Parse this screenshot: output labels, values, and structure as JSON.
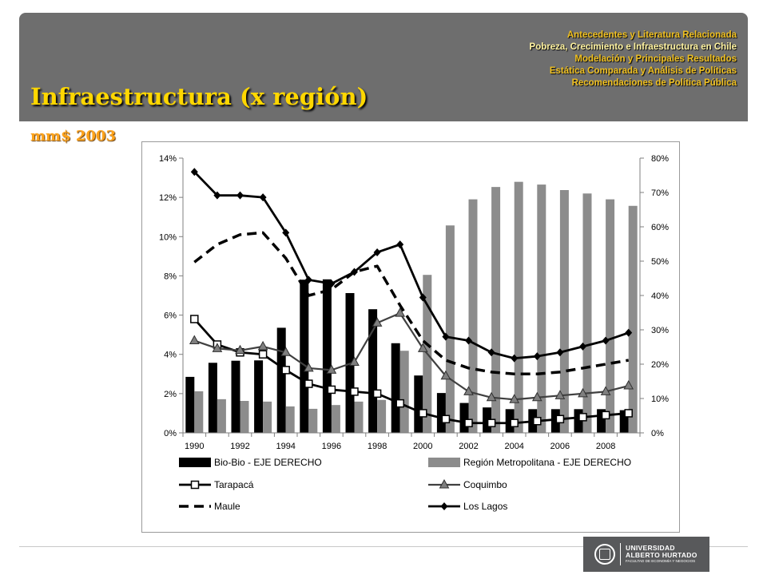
{
  "header": {
    "title": "Infraestructura (x región)",
    "nav": [
      {
        "label": "Antecedentes  y Literatura Relacionada",
        "active": false
      },
      {
        "label": "Pobreza, Crecimiento e Infraestructura  en Chile",
        "active": true
      },
      {
        "label": "Modelación y Principales Resultados",
        "active": false
      },
      {
        "label": "Estática Comparada y Análisis de Políticas",
        "active": false
      },
      {
        "label": "Recomendaciones de Política Pública",
        "active": false
      }
    ]
  },
  "subtitle": "mm$ 2003",
  "logo": {
    "name_line1": "UNIVERSIDAD",
    "name_line2": "ALBERTO HURTADO",
    "faculty": "FACULTAD DE ECONOMÍA Y NEGOCIOS"
  },
  "colors": {
    "header_bg": "#6e6e6e",
    "title": "#ffd700",
    "subtitle": "#ffa31a",
    "bar_biobio": "#000000",
    "bar_rm": "#8c8c8c",
    "coquimbo_line": "#404040",
    "coquimbo_marker": "#7f7f7f"
  },
  "chart_data": {
    "type": "bar+line",
    "years": [
      1990,
      1991,
      1992,
      1993,
      1994,
      1995,
      1996,
      1997,
      1998,
      1999,
      2000,
      2001,
      2002,
      2003,
      2004,
      2005,
      2006,
      2007,
      2008,
      2009
    ],
    "x_tick_labels": [
      "1990",
      "1992",
      "1994",
      "1996",
      "1998",
      "2000",
      "2002",
      "2004",
      "2006",
      "2008"
    ],
    "left_axis": {
      "ticks": [
        "0%",
        "2%",
        "4%",
        "6%",
        "8%",
        "10%",
        "12%",
        "14%"
      ],
      "ylim": [
        0,
        14
      ]
    },
    "right_axis": {
      "ticks": [
        "0%",
        "10%",
        "20%",
        "30%",
        "40%",
        "50%",
        "60%",
        "70%",
        "80%"
      ],
      "ylim": [
        0,
        80
      ]
    },
    "grid": false,
    "legend_position": "bottom",
    "bar_series": [
      {
        "name": "Bio-Bio  -  EJE DERECHO",
        "axis": "right",
        "values": [
          16.3,
          20.4,
          21.0,
          21.1,
          30.6,
          44.6,
          44.7,
          40.7,
          36.0,
          26.1,
          16.7,
          11.6,
          8.7,
          7.4,
          6.9,
          6.9,
          6.9,
          6.9,
          6.9,
          6.6
        ]
      },
      {
        "name": "Región Metropolitana  -  EJE DERECHO",
        "axis": "right",
        "values": [
          12.1,
          9.8,
          9.3,
          9.1,
          7.7,
          7.0,
          8.1,
          9.1,
          9.6,
          23.9,
          46.0,
          60.4,
          68.0,
          71.6,
          73.1,
          72.3,
          70.7,
          69.7,
          68.0,
          66.1
        ]
      }
    ],
    "line_series": [
      {
        "name": "Tarapacá",
        "axis": "left",
        "style": "solid",
        "marker": "square",
        "values": [
          5.8,
          4.5,
          4.1,
          4.0,
          3.2,
          2.5,
          2.2,
          2.1,
          2.0,
          1.5,
          1.0,
          0.7,
          0.5,
          0.5,
          0.5,
          0.6,
          0.7,
          0.8,
          0.9,
          1.0
        ]
      },
      {
        "name": "Coquimbo",
        "axis": "left",
        "style": "solid",
        "marker": "triangle",
        "values": [
          4.7,
          4.3,
          4.2,
          4.4,
          4.1,
          3.3,
          3.2,
          3.6,
          5.6,
          6.1,
          4.3,
          2.9,
          2.1,
          1.8,
          1.7,
          1.8,
          1.9,
          2.0,
          2.1,
          2.4
        ]
      },
      {
        "name": "Maule",
        "axis": "left",
        "style": "dashed",
        "marker": "none",
        "values": [
          8.7,
          9.6,
          10.1,
          10.2,
          8.9,
          7.0,
          7.3,
          8.2,
          8.5,
          6.5,
          4.7,
          3.7,
          3.3,
          3.1,
          3.0,
          3.0,
          3.1,
          3.3,
          3.5,
          3.7
        ]
      },
      {
        "name": "Los Lagos",
        "axis": "left",
        "style": "solid",
        "marker": "diamond",
        "values": [
          13.3,
          12.1,
          12.1,
          12.0,
          10.2,
          7.8,
          7.6,
          8.2,
          9.2,
          9.6,
          6.9,
          4.9,
          4.7,
          4.1,
          3.8,
          3.9,
          4.1,
          4.4,
          4.7,
          5.1
        ]
      }
    ]
  }
}
